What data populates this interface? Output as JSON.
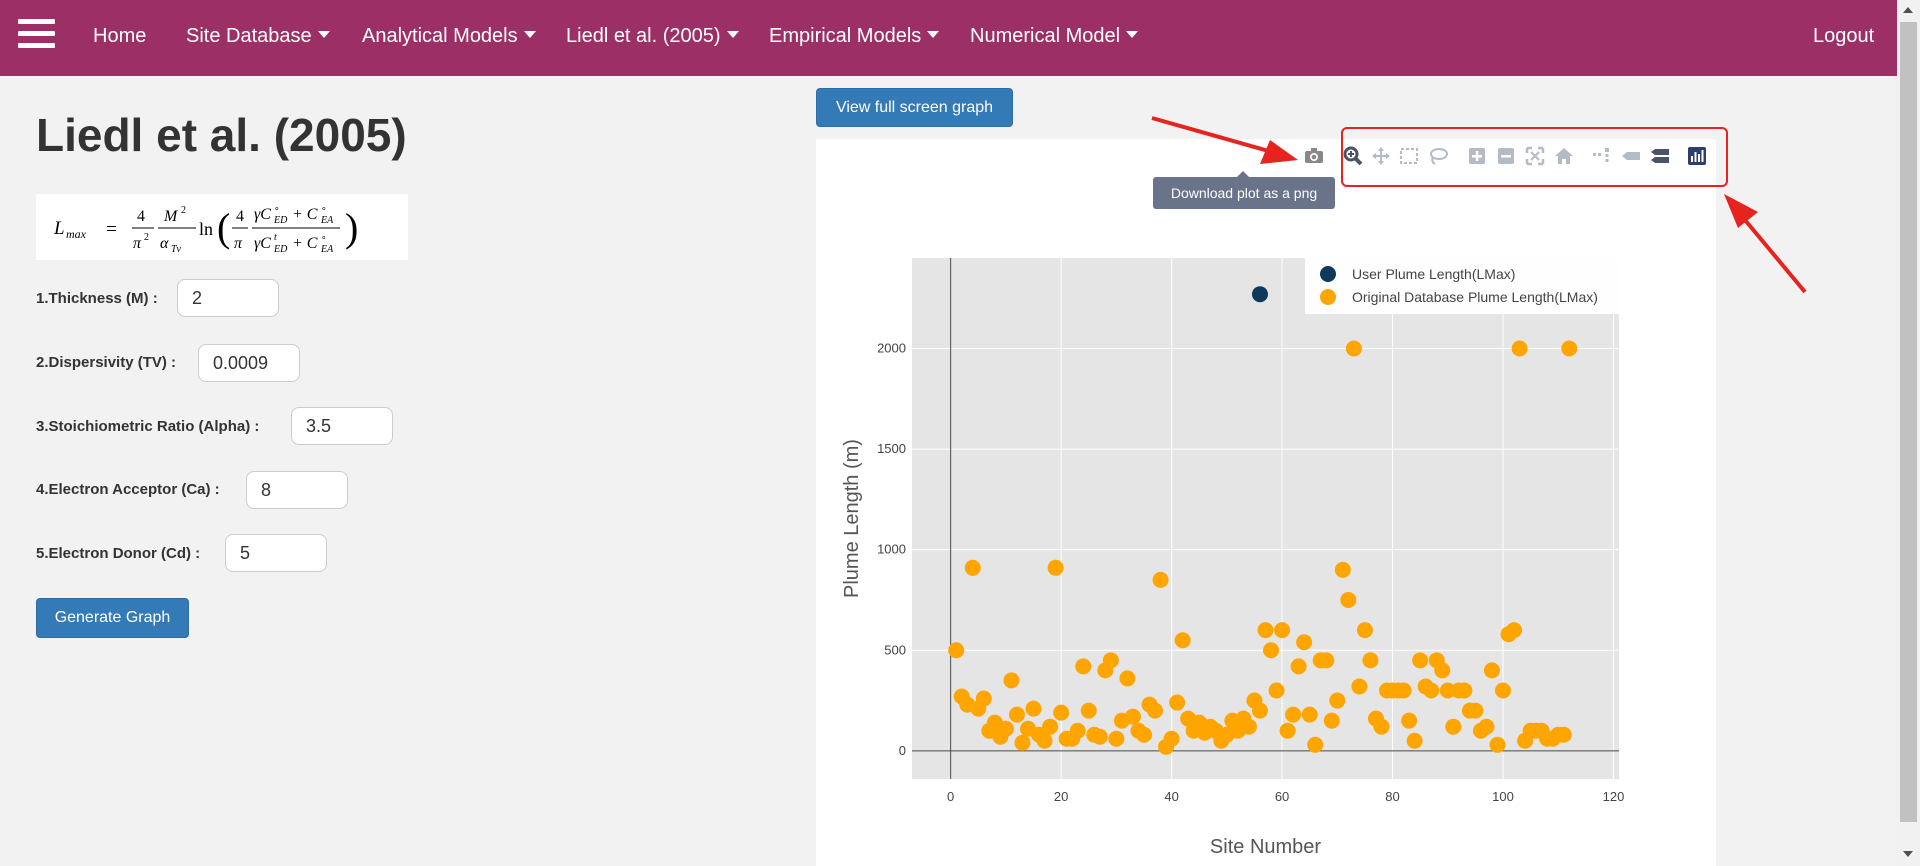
{
  "nav": {
    "home": "Home",
    "site_database": "Site Database",
    "analytical_models": "Analytical Models",
    "liedl": "Liedl et al. (2005)",
    "empirical_models": "Empirical Models",
    "numerical_model": "Numerical Model",
    "logout": "Logout"
  },
  "page": {
    "title": "Liedl et al. (2005)"
  },
  "formula": {
    "lhs": "L",
    "lhs_sub": "max",
    "num1": "4",
    "den1": "π",
    "den1_sup": "2",
    "num2": "M",
    "num2_sup": "2",
    "den2": "α",
    "den2_sub": "Tv",
    "ln": "ln",
    "num3": "4",
    "den3": "π",
    "num4_a": "γC",
    "num4_b": "+ C",
    "den4_a": "γC",
    "den4_b": "+ C",
    "sub_ed": "ED",
    "sub_ea": "EA",
    "sup_o": "∘",
    "sup_t": "t"
  },
  "form": {
    "thickness_label": "1.Thickness (M) :",
    "thickness_value": "2",
    "dispersivity_label": "2.Dispersivity (TV) :",
    "dispersivity_value": "0.0009",
    "alpha_label": "3.Stoichiometric Ratio (Alpha) :",
    "alpha_value": "3.5",
    "ca_label": "4.Electron Acceptor (Ca) :",
    "ca_value": "8",
    "cd_label": "5.Electron Donor (Cd) :",
    "cd_value": "5",
    "generate_button": "Generate Graph"
  },
  "view_full_screen_button": "View full screen graph",
  "tooltip": "Download plot as a png",
  "modebar_icons": [
    "camera-icon",
    "zoom-icon",
    "pan-icon",
    "box-select-icon",
    "lasso-select-icon",
    "zoom-in-icon",
    "zoom-out-icon",
    "autoscale-icon",
    "reset-axes-icon",
    "spike-lines-icon",
    "hover-closest-icon",
    "hover-compare-icon",
    "plotly-logo-icon"
  ],
  "colors": {
    "navbar": "#9c3066",
    "user_marker": "#0d3a5c",
    "database_marker": "#ffa500",
    "button": "#337ab7",
    "annotation_red": "#e6231e"
  },
  "chart_data": {
    "type": "scatter",
    "xlabel": "Site Number",
    "ylabel": "Plume Length (m)",
    "xlim": [
      -7,
      121
    ],
    "ylim": [
      -140,
      2450
    ],
    "xticks": [
      0,
      20,
      40,
      60,
      80,
      100,
      120
    ],
    "yticks": [
      0,
      500,
      1000,
      1500,
      2000
    ],
    "grid": true,
    "legend_position": "top-right",
    "series": [
      {
        "name": "User Plume Length(LMax)",
        "color": "#0d3a5c",
        "points": [
          [
            56,
            2270
          ]
        ]
      },
      {
        "name": "Original Database Plume Length(LMax)",
        "color": "#ffa500",
        "points": [
          [
            1,
            500
          ],
          [
            2,
            270
          ],
          [
            3,
            230
          ],
          [
            4,
            910
          ],
          [
            5,
            210
          ],
          [
            6,
            260
          ],
          [
            7,
            100
          ],
          [
            8,
            140
          ],
          [
            9,
            70
          ],
          [
            10,
            110
          ],
          [
            11,
            350
          ],
          [
            12,
            180
          ],
          [
            13,
            40
          ],
          [
            14,
            110
          ],
          [
            15,
            210
          ],
          [
            16,
            80
          ],
          [
            17,
            50
          ],
          [
            18,
            120
          ],
          [
            19,
            910
          ],
          [
            20,
            190
          ],
          [
            21,
            60
          ],
          [
            22,
            60
          ],
          [
            23,
            100
          ],
          [
            24,
            420
          ],
          [
            25,
            200
          ],
          [
            26,
            80
          ],
          [
            27,
            70
          ],
          [
            28,
            400
          ],
          [
            29,
            450
          ],
          [
            30,
            60
          ],
          [
            31,
            150
          ],
          [
            32,
            360
          ],
          [
            33,
            170
          ],
          [
            34,
            100
          ],
          [
            35,
            80
          ],
          [
            36,
            230
          ],
          [
            37,
            200
          ],
          [
            38,
            850
          ],
          [
            39,
            20
          ],
          [
            40,
            60
          ],
          [
            41,
            240
          ],
          [
            42,
            550
          ],
          [
            43,
            160
          ],
          [
            44,
            100
          ],
          [
            45,
            140
          ],
          [
            46,
            90
          ],
          [
            47,
            120
          ],
          [
            48,
            100
          ],
          [
            49,
            50
          ],
          [
            50,
            80
          ],
          [
            51,
            150
          ],
          [
            52,
            100
          ],
          [
            53,
            160
          ],
          [
            54,
            120
          ],
          [
            55,
            250
          ],
          [
            56,
            200
          ],
          [
            57,
            600
          ],
          [
            58,
            500
          ],
          [
            59,
            300
          ],
          [
            60,
            600
          ],
          [
            61,
            100
          ],
          [
            62,
            180
          ],
          [
            63,
            420
          ],
          [
            64,
            540
          ],
          [
            65,
            180
          ],
          [
            66,
            30
          ],
          [
            67,
            450
          ],
          [
            68,
            450
          ],
          [
            69,
            150
          ],
          [
            70,
            250
          ],
          [
            71,
            900
          ],
          [
            72,
            750
          ],
          [
            73,
            2000
          ],
          [
            74,
            320
          ],
          [
            75,
            600
          ],
          [
            76,
            450
          ],
          [
            77,
            160
          ],
          [
            78,
            120
          ],
          [
            79,
            300
          ],
          [
            80,
            300
          ],
          [
            81,
            300
          ],
          [
            82,
            300
          ],
          [
            83,
            150
          ],
          [
            84,
            50
          ],
          [
            85,
            450
          ],
          [
            86,
            320
          ],
          [
            87,
            300
          ],
          [
            88,
            450
          ],
          [
            89,
            400
          ],
          [
            90,
            300
          ],
          [
            91,
            120
          ],
          [
            92,
            300
          ],
          [
            93,
            300
          ],
          [
            94,
            200
          ],
          [
            95,
            200
          ],
          [
            96,
            100
          ],
          [
            97,
            120
          ],
          [
            98,
            400
          ],
          [
            99,
            30
          ],
          [
            100,
            300
          ],
          [
            101,
            580
          ],
          [
            102,
            600
          ],
          [
            103,
            2000
          ],
          [
            104,
            50
          ],
          [
            105,
            100
          ],
          [
            106,
            100
          ],
          [
            107,
            100
          ],
          [
            108,
            60
          ],
          [
            109,
            60
          ],
          [
            110,
            80
          ],
          [
            111,
            80
          ],
          [
            112,
            2000
          ]
        ]
      }
    ]
  }
}
